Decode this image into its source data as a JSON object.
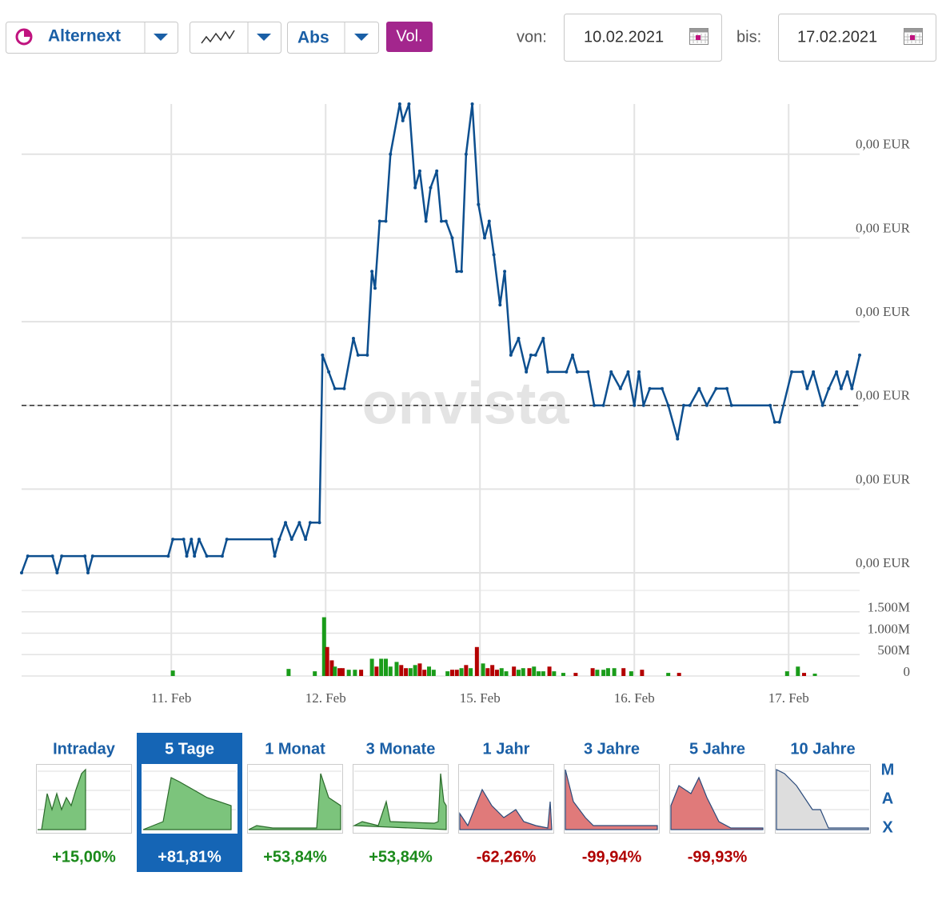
{
  "toolbar": {
    "exchange": "Alternext",
    "mode": "Abs",
    "volume_button": "Vol.",
    "from_label": "von:",
    "from_date": "10.02.2021",
    "to_label": "bis:",
    "to_date": "17.02.2021"
  },
  "chart_data": [
    {
      "type": "line",
      "watermark": "onvista",
      "x": [
        -0.97,
        -0.93,
        -0.77,
        -0.74,
        -0.71,
        -0.56,
        -0.54,
        -0.51,
        -0.02,
        0.01,
        0.08,
        0.1,
        0.13,
        0.15,
        0.18,
        0.23,
        0.33,
        0.36,
        0.65,
        0.67,
        0.7,
        0.74,
        0.78,
        0.83,
        0.87,
        0.9,
        0.96,
        0.98,
        1.02,
        1.06,
        1.12,
        1.18,
        1.21,
        1.27,
        1.3,
        1.32,
        1.35,
        1.39,
        1.42,
        1.48,
        1.5,
        1.54,
        1.58,
        1.61,
        1.65,
        1.68,
        1.72,
        1.75,
        1.78,
        1.82,
        1.85,
        1.88,
        1.91,
        1.95,
        1.99,
        2.03,
        2.06,
        2.09,
        2.13,
        2.16,
        2.2,
        2.25,
        2.3,
        2.33,
        2.36,
        2.41,
        2.44,
        2.56,
        2.6,
        2.63,
        2.7,
        2.74,
        2.8,
        2.85,
        2.91,
        2.96,
        3.0,
        3.03,
        3.06,
        3.1,
        3.18,
        3.22,
        3.28,
        3.32,
        3.36,
        3.42,
        3.47,
        3.53,
        3.6,
        3.63,
        3.88,
        3.91,
        3.94,
        4.02,
        4.09,
        4.12,
        4.16,
        4.22,
        4.26,
        4.31,
        4.34,
        4.38,
        4.41,
        4.46
      ],
      "series": [
        {
          "color": "#0d4f8f",
          "values": [
            0.0006,
            0.00064,
            0.00064,
            0.0006,
            0.00064,
            0.00064,
            0.0006,
            0.00064,
            0.00064,
            0.00068,
            0.00068,
            0.00064,
            0.00068,
            0.00064,
            0.00068,
            0.00064,
            0.00064,
            0.00068,
            0.00068,
            0.00064,
            0.00068,
            0.00072,
            0.00068,
            0.00072,
            0.00068,
            0.00072,
            0.00072,
            0.00112,
            0.00108,
            0.00104,
            0.00104,
            0.00116,
            0.00112,
            0.00112,
            0.00132,
            0.00128,
            0.00144,
            0.00144,
            0.0016,
            0.00172,
            0.00168,
            0.00172,
            0.00152,
            0.00156,
            0.00144,
            0.00152,
            0.00156,
            0.00144,
            0.00144,
            0.0014,
            0.00132,
            0.00132,
            0.0016,
            0.00172,
            0.00148,
            0.0014,
            0.00144,
            0.00136,
            0.00124,
            0.00132,
            0.00112,
            0.00116,
            0.00108,
            0.00112,
            0.00112,
            0.00116,
            0.00108,
            0.00108,
            0.00112,
            0.00108,
            0.00108,
            0.001,
            0.001,
            0.00108,
            0.00104,
            0.00108,
            0.001,
            0.00108,
            0.001,
            0.00104,
            0.00104,
            0.001,
            0.00092,
            0.001,
            0.001,
            0.00104,
            0.001,
            0.00104,
            0.00104,
            0.001,
            0.001,
            0.00096,
            0.00096,
            0.00108,
            0.00108,
            0.00104,
            0.00108,
            0.001,
            0.00104,
            0.00108,
            0.00104,
            0.00108,
            0.00104,
            0.00112
          ]
        }
      ],
      "xlim": [
        -0.97,
        4.46
      ],
      "xticks": [
        {
          "value": 0,
          "label": "11. Feb"
        },
        {
          "value": 1,
          "label": "12. Feb"
        },
        {
          "value": 2,
          "label": "15. Feb"
        },
        {
          "value": 3,
          "label": "16. Feb"
        },
        {
          "value": 4,
          "label": "17. Feb"
        }
      ],
      "ylim": [
        0.0006,
        0.00172
      ],
      "yticks": [
        {
          "value": 0.0006,
          "label": "0,00 EUR"
        },
        {
          "value": 0.0008,
          "label": "0,00 EUR"
        },
        {
          "value": 0.001,
          "label": "0,00 EUR"
        },
        {
          "value": 0.0012,
          "label": "0,00 EUR"
        },
        {
          "value": 0.0014,
          "label": "0,00 EUR"
        },
        {
          "value": 0.0016,
          "label": "0,00 EUR"
        }
      ],
      "reference_line": 0.001,
      "grid": true,
      "markers": true
    },
    {
      "type": "bar",
      "x": [
        0.01,
        0.76,
        0.93,
        0.99,
        1.01,
        1.04,
        1.06,
        1.09,
        1.11,
        1.15,
        1.19,
        1.23,
        1.3,
        1.33,
        1.36,
        1.39,
        1.42,
        1.46,
        1.49,
        1.52,
        1.55,
        1.58,
        1.61,
        1.64,
        1.67,
        1.7,
        1.79,
        1.82,
        1.85,
        1.88,
        1.91,
        1.94,
        1.98,
        2.02,
        2.05,
        2.08,
        2.11,
        2.14,
        2.17,
        2.22,
        2.25,
        2.28,
        2.32,
        2.35,
        2.38,
        2.41,
        2.45,
        2.48,
        2.54,
        2.62,
        2.73,
        2.76,
        2.8,
        2.83,
        2.87,
        2.93,
        2.98,
        3.05,
        3.22,
        3.29,
        3.99,
        4.06,
        4.1,
        4.17
      ],
      "values": [
        128,
        165,
        110,
        1373,
        677,
        366,
        220,
        183,
        183,
        146,
        146,
        146,
        403,
        220,
        403,
        403,
        220,
        329,
        256,
        183,
        183,
        256,
        293,
        146,
        220,
        146,
        110,
        146,
        146,
        183,
        256,
        183,
        677,
        293,
        183,
        256,
        146,
        183,
        110,
        220,
        146,
        183,
        183,
        220,
        110,
        110,
        220,
        110,
        73,
        73,
        183,
        146,
        146,
        183,
        183,
        183,
        110,
        146,
        73,
        73,
        110,
        220,
        73,
        55
      ],
      "colors": [
        "#1a9c1a",
        "#1a9c1a",
        "#1a9c1a",
        "#1a9c1a",
        "#b30000",
        "#b30000",
        "#1a9c1a",
        "#b30000",
        "#b30000",
        "#1a9c1a",
        "#1a9c1a",
        "#b30000",
        "#1a9c1a",
        "#b30000",
        "#1a9c1a",
        "#1a9c1a",
        "#1a9c1a",
        "#1a9c1a",
        "#b30000",
        "#b30000",
        "#1a9c1a",
        "#1a9c1a",
        "#b30000",
        "#b30000",
        "#1a9c1a",
        "#1a9c1a",
        "#1a9c1a",
        "#b30000",
        "#b30000",
        "#1a9c1a",
        "#b30000",
        "#1a9c1a",
        "#b30000",
        "#1a9c1a",
        "#b30000",
        "#b30000",
        "#b30000",
        "#1a9c1a",
        "#1a9c1a",
        "#b30000",
        "#1a9c1a",
        "#1a9c1a",
        "#b30000",
        "#1a9c1a",
        "#1a9c1a",
        "#1a9c1a",
        "#b30000",
        "#1a9c1a",
        "#1a9c1a",
        "#b30000",
        "#b30000",
        "#1a9c1a",
        "#1a9c1a",
        "#1a9c1a",
        "#1a9c1a",
        "#b30000",
        "#1a9c1a",
        "#b30000",
        "#1a9c1a",
        "#b30000",
        "#1a9c1a",
        "#1a9c1a",
        "#b30000",
        "#1a9c1a"
      ],
      "xlim": [
        -0.97,
        4.46
      ],
      "ylim": [
        0,
        2000
      ],
      "yticks": [
        0,
        {
          "value": 500,
          "label": "500M"
        },
        {
          "value": 1000,
          "label": "1.000M"
        },
        {
          "value": 1500,
          "label": "1.500M"
        }
      ],
      "grid": true
    }
  ],
  "periods": [
    {
      "label": "Intraday",
      "change": "+15,00%",
      "color": "#1a8a1a"
    },
    {
      "label": "5 Tage",
      "change": "+81,81%",
      "color": "#ffffff"
    },
    {
      "label": "1 Monat",
      "change": "+53,84%",
      "color": "#1a8a1a"
    },
    {
      "label": "3 Monate",
      "change": "+53,84%",
      "color": "#1a8a1a"
    },
    {
      "label": "1 Jahr",
      "change": "-62,26%",
      "color": "#b00000"
    },
    {
      "label": "3 Jahre",
      "change": "-99,94%",
      "color": "#b00000"
    },
    {
      "label": "5 Jahre",
      "change": "-99,93%",
      "color": "#b00000"
    },
    {
      "label": "10 Jahre",
      "change": "",
      "color": "#1a8a1a"
    }
  ],
  "active_period": 1,
  "max_button": [
    "M",
    "A",
    "X"
  ]
}
